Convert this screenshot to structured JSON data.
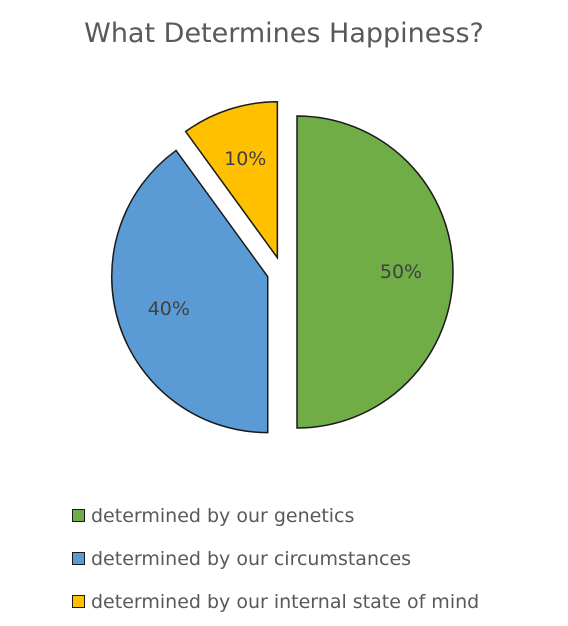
{
  "chart_data": {
    "type": "pie",
    "title": "What Determines Happiness?",
    "slices": [
      {
        "name": "determined by our genetics",
        "value": 50,
        "label": "50%",
        "color": "#70ad47"
      },
      {
        "name": "determined by our circumstances",
        "value": 40,
        "label": "40%",
        "color": "#5b9bd5"
      },
      {
        "name": "determined by our internal state of mind",
        "value": 10,
        "label": "10%",
        "color": "#ffc000"
      }
    ],
    "exploded": true,
    "start_angle_deg": 0,
    "direction": "clockwise",
    "legend_position": "bottom"
  }
}
